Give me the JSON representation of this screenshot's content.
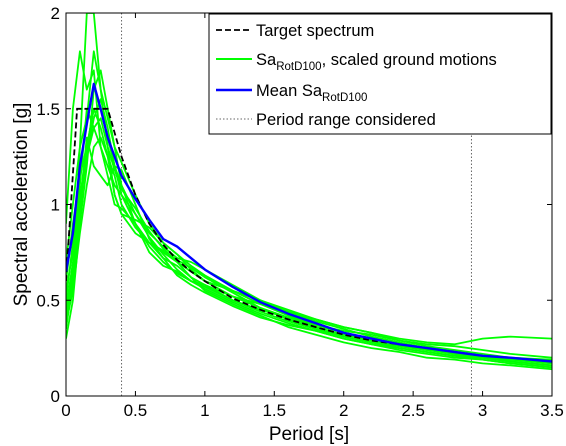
{
  "chart_data": {
    "type": "line",
    "title": "",
    "xlabel": "Period [s]",
    "ylabel": "Spectral acceleration [g]",
    "xlim": [
      0,
      3.5
    ],
    "ylim": [
      0,
      2
    ],
    "x_ticks": [
      0,
      0.5,
      1,
      1.5,
      2,
      2.5,
      3,
      3.5
    ],
    "x_tick_labels": [
      "0",
      "0.5",
      "1",
      "1.5",
      "2",
      "2.5",
      "3",
      "3.5"
    ],
    "y_ticks": [
      0,
      0.5,
      1,
      1.5,
      2
    ],
    "y_tick_labels": [
      "0",
      "0.5",
      "1",
      "1.5",
      "2"
    ],
    "grid": false,
    "legend_position": "top-right",
    "legend": [
      {
        "main": "Target spectrum",
        "sub": "",
        "tail": "",
        "series": "target"
      },
      {
        "main": "Sa",
        "sub": "RotD100",
        "tail": ", scaled ground motions",
        "series": "ground_motions"
      },
      {
        "main": "Mean Sa",
        "sub": "RotD100",
        "tail": "",
        "series": "mean"
      },
      {
        "main": "Period range considered",
        "sub": "",
        "tail": "",
        "series": "period_range"
      }
    ],
    "period_range": [
      0.4,
      2.92
    ],
    "target": {
      "color": "#000000",
      "style": "dashed",
      "x": [
        0,
        0.08,
        0.2,
        0.3,
        0.4,
        0.5,
        0.6,
        0.7,
        0.8,
        0.9,
        1.0,
        1.2,
        1.4,
        1.6,
        1.8,
        2.0,
        2.2,
        2.4,
        2.6,
        2.8,
        3.0,
        3.2,
        3.5
      ],
      "y": [
        0.6,
        1.5,
        1.5,
        1.5,
        1.25,
        1.05,
        0.9,
        0.79,
        0.71,
        0.65,
        0.6,
        0.51,
        0.45,
        0.4,
        0.36,
        0.32,
        0.29,
        0.27,
        0.25,
        0.23,
        0.21,
        0.2,
        0.18
      ]
    },
    "mean": {
      "color": "#0000ff",
      "x": [
        0,
        0.05,
        0.1,
        0.15,
        0.2,
        0.25,
        0.3,
        0.35,
        0.4,
        0.5,
        0.6,
        0.7,
        0.8,
        0.9,
        1.0,
        1.2,
        1.4,
        1.6,
        1.8,
        2.0,
        2.2,
        2.4,
        2.6,
        2.8,
        3.0,
        3.2,
        3.5
      ],
      "y": [
        0.65,
        0.85,
        1.2,
        1.42,
        1.63,
        1.5,
        1.35,
        1.25,
        1.15,
        1.03,
        0.92,
        0.82,
        0.78,
        0.72,
        0.66,
        0.57,
        0.49,
        0.43,
        0.38,
        0.33,
        0.3,
        0.27,
        0.25,
        0.23,
        0.21,
        0.2,
        0.18
      ]
    },
    "ground_motions": {
      "color": "#00ff00",
      "x": [
        0,
        0.05,
        0.1,
        0.15,
        0.2,
        0.25,
        0.3,
        0.35,
        0.4,
        0.5,
        0.6,
        0.7,
        0.8,
        0.9,
        1.0,
        1.2,
        1.4,
        1.6,
        1.8,
        2.0,
        2.2,
        2.4,
        2.6,
        2.8,
        3.0,
        3.2,
        3.5
      ],
      "records": [
        [
          0.35,
          0.6,
          1.3,
          2.0,
          2.0,
          1.6,
          1.3,
          1.05,
          0.95,
          0.85,
          0.8,
          0.75,
          0.7,
          0.62,
          0.55,
          0.48,
          0.42,
          0.36,
          0.32,
          0.28,
          0.25,
          0.23,
          0.2,
          0.19,
          0.17,
          0.16,
          0.14
        ],
        [
          0.9,
          1.5,
          1.8,
          1.6,
          1.7,
          1.3,
          1.15,
          1.0,
          0.98,
          0.9,
          0.8,
          0.72,
          0.68,
          0.62,
          0.58,
          0.52,
          0.48,
          0.44,
          0.4,
          0.36,
          0.33,
          0.3,
          0.28,
          0.27,
          0.3,
          0.31,
          0.3
        ],
        [
          0.5,
          0.8,
          1.1,
          1.5,
          1.4,
          1.3,
          1.2,
          1.1,
          1.05,
          0.95,
          0.85,
          0.78,
          0.72,
          0.7,
          0.66,
          0.58,
          0.5,
          0.44,
          0.39,
          0.35,
          0.31,
          0.28,
          0.25,
          0.22,
          0.2,
          0.18,
          0.16
        ],
        [
          0.45,
          0.7,
          1.05,
          1.25,
          1.45,
          1.55,
          1.4,
          1.2,
          1.1,
          0.9,
          0.75,
          0.68,
          0.65,
          0.6,
          0.58,
          0.5,
          0.45,
          0.41,
          0.37,
          0.34,
          0.32,
          0.29,
          0.27,
          0.26,
          0.24,
          0.22,
          0.2
        ],
        [
          0.38,
          0.55,
          0.85,
          1.1,
          1.3,
          1.35,
          1.25,
          1.05,
          0.95,
          0.92,
          0.88,
          0.8,
          0.74,
          0.66,
          0.6,
          0.55,
          0.48,
          0.42,
          0.37,
          0.33,
          0.3,
          0.27,
          0.24,
          0.22,
          0.2,
          0.19,
          0.17
        ],
        [
          0.42,
          0.65,
          1.0,
          1.35,
          1.2,
          1.15,
          1.1,
          1.2,
          1.18,
          1.0,
          0.82,
          0.72,
          0.63,
          0.58,
          0.54,
          0.47,
          0.41,
          0.37,
          0.34,
          0.3,
          0.27,
          0.24,
          0.22,
          0.2,
          0.19,
          0.17,
          0.15
        ],
        [
          0.6,
          0.9,
          1.15,
          1.3,
          1.5,
          1.4,
          1.25,
          1.15,
          1.0,
          0.88,
          0.8,
          0.76,
          0.71,
          0.67,
          0.62,
          0.54,
          0.46,
          0.4,
          0.35,
          0.31,
          0.28,
          0.25,
          0.23,
          0.21,
          0.19,
          0.17,
          0.15
        ],
        [
          0.3,
          0.5,
          0.9,
          1.2,
          1.6,
          1.7,
          1.5,
          1.3,
          1.22,
          1.05,
          0.9,
          0.8,
          0.74,
          0.68,
          0.63,
          0.55,
          0.5,
          0.45,
          0.4,
          0.36,
          0.33,
          0.29,
          0.26,
          0.24,
          0.22,
          0.2,
          0.19
        ],
        [
          0.7,
          1.0,
          1.3,
          1.45,
          1.8,
          1.6,
          1.45,
          1.3,
          1.1,
          0.95,
          0.83,
          0.74,
          0.66,
          0.6,
          0.56,
          0.49,
          0.43,
          0.38,
          0.34,
          0.3,
          0.27,
          0.25,
          0.23,
          0.21,
          0.2,
          0.18,
          0.16
        ],
        [
          0.55,
          0.75,
          1.0,
          1.25,
          1.4,
          1.45,
          1.3,
          1.18,
          1.08,
          0.98,
          0.86,
          0.77,
          0.7,
          0.65,
          0.6,
          0.52,
          0.46,
          0.41,
          0.36,
          0.32,
          0.29,
          0.26,
          0.24,
          0.23,
          0.21,
          0.19,
          0.17
        ],
        [
          0.4,
          0.6,
          0.95,
          1.3,
          1.5,
          1.5,
          1.35,
          1.2,
          1.05,
          0.9,
          0.78,
          0.7,
          0.64,
          0.6,
          0.57,
          0.5,
          0.44,
          0.39,
          0.35,
          0.31,
          0.28,
          0.26,
          0.24,
          0.22,
          0.2,
          0.18,
          0.16
        ]
      ]
    }
  }
}
